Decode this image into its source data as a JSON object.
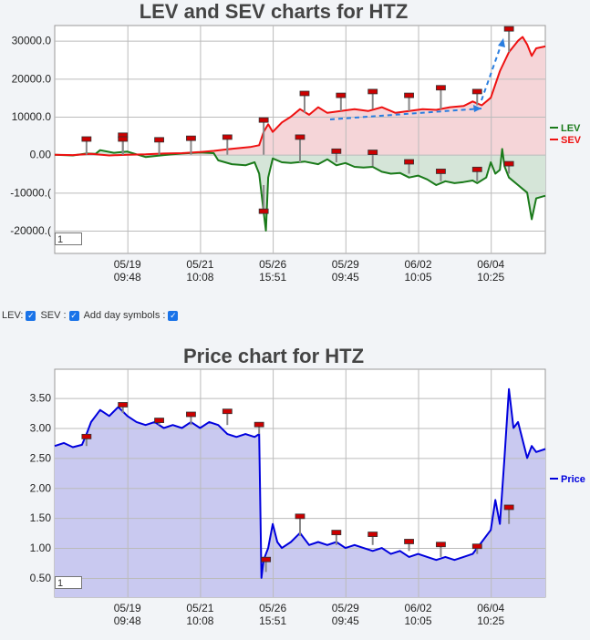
{
  "chart_data": [
    {
      "type": "line",
      "title": "LEV and SEV charts for HTZ",
      "x_tick_labels": [
        [
          "05/19",
          "09:48"
        ],
        [
          "05/21",
          "10:08"
        ],
        [
          "05/26",
          "15:51"
        ],
        [
          "05/29",
          "09:45"
        ],
        [
          "06/02",
          "10:05"
        ],
        [
          "06/04",
          "10:25"
        ]
      ],
      "y_tick_labels": [
        "30000.0",
        "20000.0",
        "10000.0",
        "0.00",
        "-10000.(",
        "-20000.("
      ],
      "y_ticks": [
        30000,
        20000,
        10000,
        0,
        -10000,
        -20000
      ],
      "ylim": [
        -26000,
        34000
      ],
      "legend": "right",
      "grid": true,
      "series": [
        {
          "name": "LEV",
          "color": "#1a7a1a",
          "fill": "#d5e5d8",
          "points": [
            [
              0,
              0
            ],
            [
              4,
              -200
            ],
            [
              7,
              300
            ],
            [
              9,
              200
            ],
            [
              10,
              1200
            ],
            [
              13,
              500
            ],
            [
              16,
              800
            ],
            [
              20,
              -600
            ],
            [
              24,
              -100
            ],
            [
              28,
              300
            ],
            [
              32,
              600
            ],
            [
              35,
              400
            ],
            [
              36,
              -1500
            ],
            [
              39,
              -2500
            ],
            [
              42,
              -2800
            ],
            [
              44,
              -2000
            ],
            [
              45,
              -5000
            ],
            [
              46,
              -15000
            ],
            [
              46.5,
              -20000
            ],
            [
              47,
              -6000
            ],
            [
              48,
              -1000
            ],
            [
              50,
              -2000
            ],
            [
              52,
              -2200
            ],
            [
              55,
              -1800
            ],
            [
              58,
              -2500
            ],
            [
              60,
              -1200
            ],
            [
              62,
              -2800
            ],
            [
              64,
              -2200
            ],
            [
              66,
              -3200
            ],
            [
              68,
              -3400
            ],
            [
              70,
              -3200
            ],
            [
              72,
              -4500
            ],
            [
              74,
              -5000
            ],
            [
              76,
              -4800
            ],
            [
              78,
              -6000
            ],
            [
              80,
              -5500
            ],
            [
              82,
              -6500
            ],
            [
              84,
              -8000
            ],
            [
              86,
              -7000
            ],
            [
              88,
              -7500
            ],
            [
              90,
              -7200
            ],
            [
              92,
              -6800
            ],
            [
              93,
              -7500
            ],
            [
              95,
              -6000
            ],
            [
              96,
              -2000
            ],
            [
              97,
              -5000
            ],
            [
              98,
              -4000
            ],
            [
              98.5,
              1500
            ],
            [
              99,
              -3000
            ],
            [
              100,
              -6000
            ],
            [
              102,
              -8000
            ],
            [
              103,
              -9000
            ],
            [
              104,
              -10000
            ],
            [
              105,
              -17000
            ],
            [
              106,
              -11500
            ],
            [
              108,
              -10800
            ]
          ]
        },
        {
          "name": "SEV",
          "color": "#ee1111",
          "fill": "#f5d5d8",
          "points": [
            [
              0,
              0
            ],
            [
              4,
              -100
            ],
            [
              8,
              200
            ],
            [
              12,
              -200
            ],
            [
              16,
              0
            ],
            [
              20,
              100
            ],
            [
              24,
              300
            ],
            [
              28,
              400
            ],
            [
              32,
              700
            ],
            [
              35,
              1000
            ],
            [
              38,
              1400
            ],
            [
              41,
              1800
            ],
            [
              43,
              2000
            ],
            [
              45,
              2500
            ],
            [
              46,
              6000
            ],
            [
              47,
              8000
            ],
            [
              48,
              6000
            ],
            [
              50,
              8500
            ],
            [
              52,
              10000
            ],
            [
              54,
              12000
            ],
            [
              56,
              10500
            ],
            [
              58,
              12500
            ],
            [
              60,
              11000
            ],
            [
              63,
              11500
            ],
            [
              66,
              12000
            ],
            [
              69,
              11500
            ],
            [
              72,
              12500
            ],
            [
              75,
              11000
            ],
            [
              78,
              11500
            ],
            [
              81,
              12000
            ],
            [
              84,
              11800
            ],
            [
              87,
              12500
            ],
            [
              90,
              12800
            ],
            [
              92,
              14000
            ],
            [
              94,
              13000
            ],
            [
              96,
              15000
            ],
            [
              98,
              22000
            ],
            [
              100,
              27000
            ],
            [
              102,
              30000
            ],
            [
              103,
              31000
            ],
            [
              104,
              29000
            ],
            [
              105,
              26000
            ],
            [
              106,
              28000
            ],
            [
              108,
              28500
            ]
          ]
        }
      ],
      "annotation": "dashed arrow"
    },
    {
      "type": "area",
      "title": "Price chart for HTZ",
      "x_tick_labels": [
        [
          "05/19",
          "09:48"
        ],
        [
          "05/21",
          "10:08"
        ],
        [
          "05/26",
          "15:51"
        ],
        [
          "05/29",
          "09:45"
        ],
        [
          "06/02",
          "10:05"
        ],
        [
          "06/04",
          "10:25"
        ]
      ],
      "y_tick_labels": [
        "3.50",
        "3.00",
        "2.50",
        "2.00",
        "1.50",
        "1.00",
        "0.50"
      ],
      "y_ticks": [
        3.5,
        3.0,
        2.5,
        2.0,
        1.5,
        1.0,
        0.5
      ],
      "ylim": [
        0.18,
        3.98
      ],
      "legend": "right",
      "grid": true,
      "series": [
        {
          "name": "Price",
          "color": "#0000dd",
          "fill": "#c9c9f0",
          "points": [
            [
              0,
              2.7
            ],
            [
              2,
              2.75
            ],
            [
              4,
              2.68
            ],
            [
              6,
              2.72
            ],
            [
              7,
              2.9
            ],
            [
              8,
              3.1
            ],
            [
              10,
              3.3
            ],
            [
              12,
              3.2
            ],
            [
              14,
              3.35
            ],
            [
              16,
              3.2
            ],
            [
              18,
              3.1
            ],
            [
              20,
              3.05
            ],
            [
              22,
              3.1
            ],
            [
              24,
              3.0
            ],
            [
              26,
              3.05
            ],
            [
              28,
              3.0
            ],
            [
              30,
              3.1
            ],
            [
              32,
              3.0
            ],
            [
              34,
              3.1
            ],
            [
              36,
              3.05
            ],
            [
              38,
              2.9
            ],
            [
              40,
              2.85
            ],
            [
              42,
              2.9
            ],
            [
              44,
              2.85
            ],
            [
              45,
              2.9
            ],
            [
              45.5,
              0.5
            ],
            [
              46,
              0.8
            ],
            [
              47,
              1.0
            ],
            [
              48,
              1.4
            ],
            [
              49,
              1.1
            ],
            [
              50,
              1.0
            ],
            [
              52,
              1.1
            ],
            [
              54,
              1.25
            ],
            [
              56,
              1.05
            ],
            [
              58,
              1.1
            ],
            [
              60,
              1.05
            ],
            [
              62,
              1.1
            ],
            [
              64,
              1.0
            ],
            [
              66,
              1.05
            ],
            [
              68,
              1.0
            ],
            [
              70,
              0.95
            ],
            [
              72,
              1.0
            ],
            [
              74,
              0.9
            ],
            [
              76,
              0.95
            ],
            [
              78,
              0.85
            ],
            [
              80,
              0.9
            ],
            [
              82,
              0.85
            ],
            [
              84,
              0.8
            ],
            [
              86,
              0.85
            ],
            [
              88,
              0.8
            ],
            [
              90,
              0.85
            ],
            [
              92,
              0.9
            ],
            [
              94,
              1.1
            ],
            [
              96,
              1.3
            ],
            [
              97,
              1.8
            ],
            [
              98,
              1.4
            ],
            [
              99,
              2.5
            ],
            [
              100,
              3.65
            ],
            [
              101,
              3.0
            ],
            [
              102,
              3.1
            ],
            [
              103,
              2.8
            ],
            [
              104,
              2.5
            ],
            [
              105,
              2.7
            ],
            [
              106,
              2.6
            ],
            [
              108,
              2.65
            ]
          ]
        }
      ]
    }
  ],
  "controls": {
    "lev_label": "LEV:",
    "sev_label": "SEV :",
    "day_label": "Add day symbols :",
    "check": "✓"
  },
  "zoom_value": "1"
}
